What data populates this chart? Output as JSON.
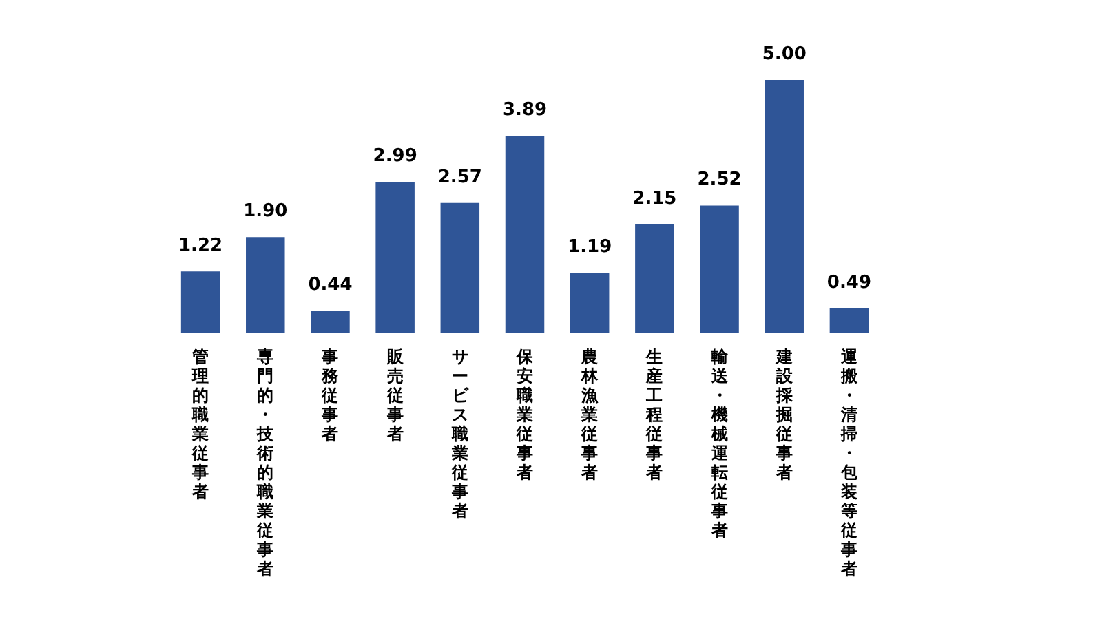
{
  "chart_data": {
    "type": "bar",
    "categories": [
      "管理的職業従事者",
      "専門的・技術的職業従事者",
      "事務従事者",
      "販売従事者",
      "サービス職業従事者",
      "保安職業従事者",
      "農林漁業従事者",
      "生産工程従事者",
      "輸送・機械運転従事者",
      "建設採掘従事者",
      "運搬・清掃・包装等従事者"
    ],
    "values": [
      1.22,
      1.9,
      0.44,
      2.99,
      2.57,
      3.89,
      1.19,
      2.15,
      2.52,
      5.0,
      0.49
    ],
    "value_labels": [
      "1.22",
      "1.90",
      "0.44",
      "2.99",
      "2.57",
      "3.89",
      "1.19",
      "2.15",
      "2.52",
      "5.00",
      "0.49"
    ],
    "color": "#2f5597",
    "grid": false,
    "legend": false
  }
}
